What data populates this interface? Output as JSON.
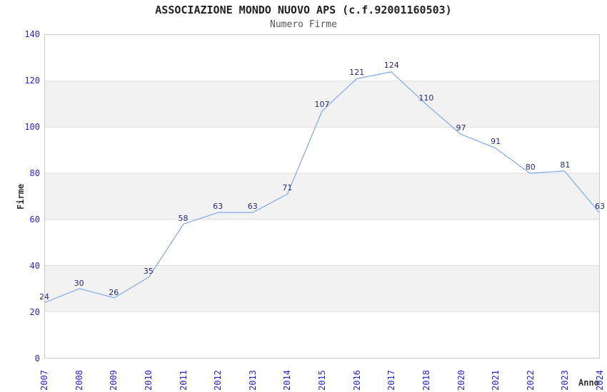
{
  "title": "ASSOCIAZIONE MONDO NUOVO APS (c.f.92001160503)",
  "subtitle": "Numero Firme",
  "chart_data": {
    "type": "line",
    "title": "ASSOCIAZIONE MONDO NUOVO APS (c.f.92001160503)",
    "subtitle": "Numero Firme",
    "xlabel": "Anno",
    "ylabel": "Firme",
    "categories": [
      "2007",
      "2008",
      "2009",
      "2010",
      "2011",
      "2012",
      "2013",
      "2014",
      "2015",
      "2016",
      "2017",
      "2018",
      "2020",
      "2021",
      "2022",
      "2023",
      "2024"
    ],
    "values": [
      24,
      30,
      26,
      35,
      58,
      63,
      63,
      71,
      107,
      121,
      124,
      110,
      97,
      91,
      80,
      81,
      63
    ],
    "ylim": [
      0,
      140
    ],
    "yticks": [
      0,
      20,
      40,
      60,
      80,
      100,
      120,
      140
    ],
    "x_tick_rotation": -90,
    "grid": "alternating horizontal gray bands every 20 units with light gridlines",
    "legend": "none",
    "markers": "none",
    "data_labels": "shown above each point"
  },
  "colors": {
    "line": "#7da9ec",
    "data_label": "#27277f",
    "tick_label": "#2424d6",
    "title": "#222222",
    "subtitle": "#555555",
    "axis_title": "#333333",
    "band_fill": "#f2f2f2",
    "gridline": "#dddddd",
    "plot_border": "#cccccc",
    "background": "#ffffff"
  }
}
